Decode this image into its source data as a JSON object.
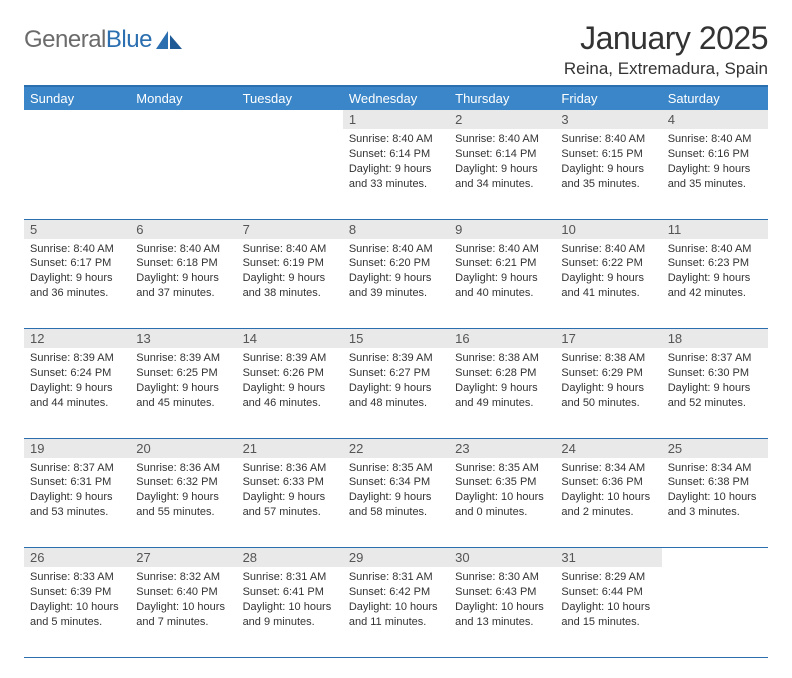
{
  "brand": {
    "part1": "General",
    "part2": "Blue"
  },
  "title": "January 2025",
  "location": "Reina, Extremadura, Spain",
  "colors": {
    "header_bg": "#3a86c8",
    "header_text": "#ffffff",
    "border": "#2b6fb0",
    "daynum_bg": "#e9e9e9",
    "text": "#333333",
    "logo_gray": "#6b6b6b",
    "logo_blue": "#2b6fb0",
    "page_bg": "#ffffff"
  },
  "font": {
    "family": "Arial",
    "title_size": 32,
    "location_size": 17,
    "header_size": 13,
    "cell_size": 11,
    "daynum_size": 13
  },
  "days_of_week": [
    "Sunday",
    "Monday",
    "Tuesday",
    "Wednesday",
    "Thursday",
    "Friday",
    "Saturday"
  ],
  "weeks": [
    [
      null,
      null,
      null,
      {
        "n": "1",
        "sunrise": "8:40 AM",
        "sunset": "6:14 PM",
        "daylight": "9 hours and 33 minutes."
      },
      {
        "n": "2",
        "sunrise": "8:40 AM",
        "sunset": "6:14 PM",
        "daylight": "9 hours and 34 minutes."
      },
      {
        "n": "3",
        "sunrise": "8:40 AM",
        "sunset": "6:15 PM",
        "daylight": "9 hours and 35 minutes."
      },
      {
        "n": "4",
        "sunrise": "8:40 AM",
        "sunset": "6:16 PM",
        "daylight": "9 hours and 35 minutes."
      }
    ],
    [
      {
        "n": "5",
        "sunrise": "8:40 AM",
        "sunset": "6:17 PM",
        "daylight": "9 hours and 36 minutes."
      },
      {
        "n": "6",
        "sunrise": "8:40 AM",
        "sunset": "6:18 PM",
        "daylight": "9 hours and 37 minutes."
      },
      {
        "n": "7",
        "sunrise": "8:40 AM",
        "sunset": "6:19 PM",
        "daylight": "9 hours and 38 minutes."
      },
      {
        "n": "8",
        "sunrise": "8:40 AM",
        "sunset": "6:20 PM",
        "daylight": "9 hours and 39 minutes."
      },
      {
        "n": "9",
        "sunrise": "8:40 AM",
        "sunset": "6:21 PM",
        "daylight": "9 hours and 40 minutes."
      },
      {
        "n": "10",
        "sunrise": "8:40 AM",
        "sunset": "6:22 PM",
        "daylight": "9 hours and 41 minutes."
      },
      {
        "n": "11",
        "sunrise": "8:40 AM",
        "sunset": "6:23 PM",
        "daylight": "9 hours and 42 minutes."
      }
    ],
    [
      {
        "n": "12",
        "sunrise": "8:39 AM",
        "sunset": "6:24 PM",
        "daylight": "9 hours and 44 minutes."
      },
      {
        "n": "13",
        "sunrise": "8:39 AM",
        "sunset": "6:25 PM",
        "daylight": "9 hours and 45 minutes."
      },
      {
        "n": "14",
        "sunrise": "8:39 AM",
        "sunset": "6:26 PM",
        "daylight": "9 hours and 46 minutes."
      },
      {
        "n": "15",
        "sunrise": "8:39 AM",
        "sunset": "6:27 PM",
        "daylight": "9 hours and 48 minutes."
      },
      {
        "n": "16",
        "sunrise": "8:38 AM",
        "sunset": "6:28 PM",
        "daylight": "9 hours and 49 minutes."
      },
      {
        "n": "17",
        "sunrise": "8:38 AM",
        "sunset": "6:29 PM",
        "daylight": "9 hours and 50 minutes."
      },
      {
        "n": "18",
        "sunrise": "8:37 AM",
        "sunset": "6:30 PM",
        "daylight": "9 hours and 52 minutes."
      }
    ],
    [
      {
        "n": "19",
        "sunrise": "8:37 AM",
        "sunset": "6:31 PM",
        "daylight": "9 hours and 53 minutes."
      },
      {
        "n": "20",
        "sunrise": "8:36 AM",
        "sunset": "6:32 PM",
        "daylight": "9 hours and 55 minutes."
      },
      {
        "n": "21",
        "sunrise": "8:36 AM",
        "sunset": "6:33 PM",
        "daylight": "9 hours and 57 minutes."
      },
      {
        "n": "22",
        "sunrise": "8:35 AM",
        "sunset": "6:34 PM",
        "daylight": "9 hours and 58 minutes."
      },
      {
        "n": "23",
        "sunrise": "8:35 AM",
        "sunset": "6:35 PM",
        "daylight": "10 hours and 0 minutes."
      },
      {
        "n": "24",
        "sunrise": "8:34 AM",
        "sunset": "6:36 PM",
        "daylight": "10 hours and 2 minutes."
      },
      {
        "n": "25",
        "sunrise": "8:34 AM",
        "sunset": "6:38 PM",
        "daylight": "10 hours and 3 minutes."
      }
    ],
    [
      {
        "n": "26",
        "sunrise": "8:33 AM",
        "sunset": "6:39 PM",
        "daylight": "10 hours and 5 minutes."
      },
      {
        "n": "27",
        "sunrise": "8:32 AM",
        "sunset": "6:40 PM",
        "daylight": "10 hours and 7 minutes."
      },
      {
        "n": "28",
        "sunrise": "8:31 AM",
        "sunset": "6:41 PM",
        "daylight": "10 hours and 9 minutes."
      },
      {
        "n": "29",
        "sunrise": "8:31 AM",
        "sunset": "6:42 PM",
        "daylight": "10 hours and 11 minutes."
      },
      {
        "n": "30",
        "sunrise": "8:30 AM",
        "sunset": "6:43 PM",
        "daylight": "10 hours and 13 minutes."
      },
      {
        "n": "31",
        "sunrise": "8:29 AM",
        "sunset": "6:44 PM",
        "daylight": "10 hours and 15 minutes."
      },
      null
    ]
  ],
  "labels": {
    "sunrise": "Sunrise:",
    "sunset": "Sunset:",
    "daylight": "Daylight:"
  }
}
